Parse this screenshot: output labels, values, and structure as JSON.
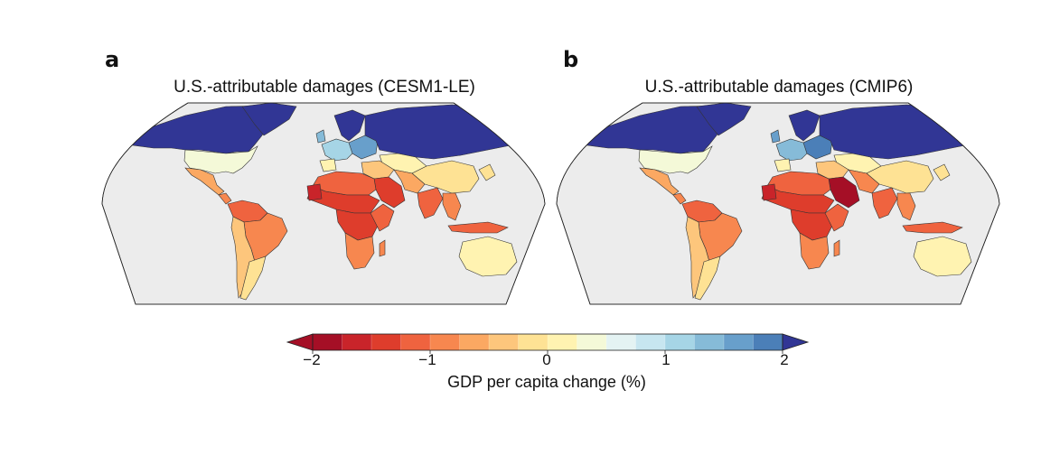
{
  "panels": [
    {
      "letter": "a",
      "title": "U.S.-attributable damages (CESM1-LE)"
    },
    {
      "letter": "b",
      "title": "U.S.-attributable damages (CMIP6)"
    }
  ],
  "colorbar": {
    "title": "GDP per capita change (%)",
    "tick_labels": [
      "−2",
      "−1",
      "0",
      "1",
      "2"
    ],
    "ticks": [
      -2,
      -1,
      0,
      1,
      2
    ],
    "range": [
      -2,
      2
    ],
    "step": 0.25,
    "extend": "both",
    "colors": [
      "#a50f26",
      "#c9242a",
      "#de3d2c",
      "#ef633f",
      "#f7874f",
      "#fba862",
      "#fdc67c",
      "#fee294",
      "#fff3b1",
      "#f4f9d8",
      "#e4f3f3",
      "#c7e6f0",
      "#a6d5e6",
      "#86bbd8",
      "#689fcb",
      "#4b7fb8",
      "#3c5ba7"
    ],
    "neg_extend_color": "#a50f26",
    "pos_extend_color": "#313695"
  },
  "map": {
    "ocean_color": "#ececec",
    "background_color": "#ffffff",
    "border_color": "#000000"
  }
}
